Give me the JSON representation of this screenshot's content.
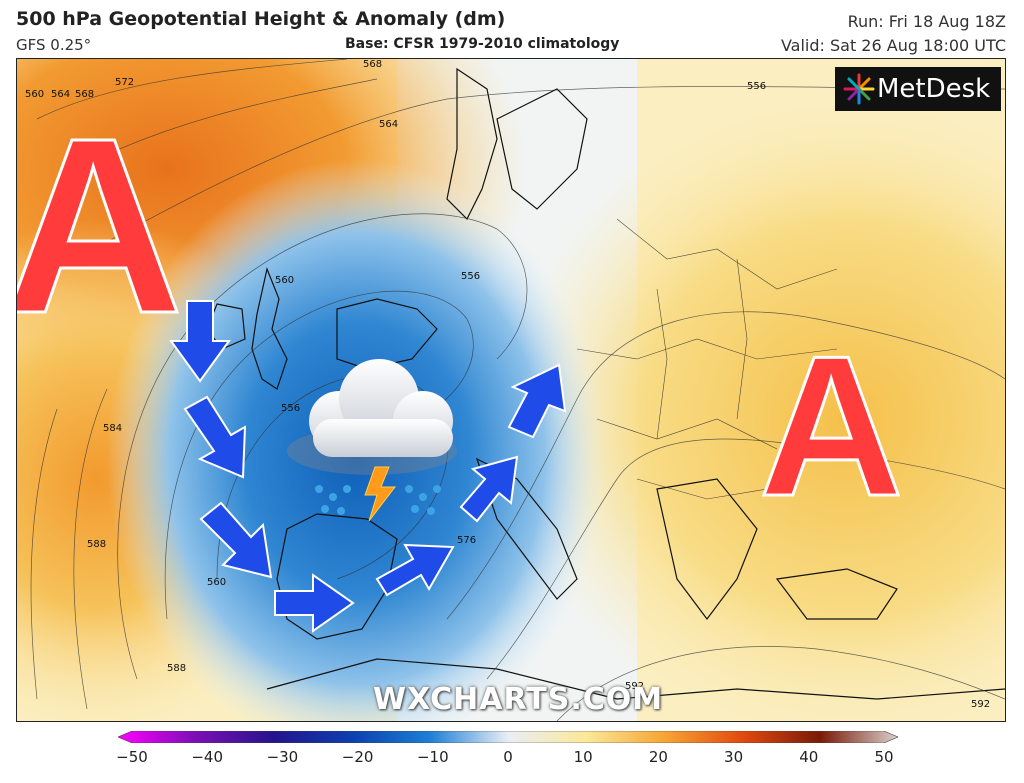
{
  "header": {
    "title": "500 hPa Geopotential Height & Anomaly (dm)",
    "model": "GFS 0.25°",
    "base": "Base: CFSR 1979-2010 climatology",
    "run": "Run: Fri 18 Aug 18Z",
    "valid": "Valid: Sat 26 Aug 18:00 UTC"
  },
  "logo": {
    "text": "MetDesk"
  },
  "watermark": "WXCHARTS.COM",
  "annotations": {
    "high_left": "A",
    "high_right": "A"
  },
  "contour_labels": [
    "560",
    "564",
    "568",
    "572",
    "556",
    "560",
    "564",
    "568",
    "556",
    "556",
    "584",
    "588",
    "560",
    "588",
    "576",
    "592",
    "592"
  ],
  "colorbar": {
    "ticks": [
      "−50",
      "−40",
      "−30",
      "−20",
      "−10",
      "0",
      "10",
      "20",
      "30",
      "40",
      "50"
    ],
    "colors": [
      "#ff00ff",
      "#7a0fb4",
      "#24148c",
      "#0d3fb0",
      "#1e7fd4",
      "#dbe9f5",
      "#fbe89a",
      "#f7a535",
      "#e24a10",
      "#7a1a08",
      "#ffffff"
    ]
  },
  "icons": [
    "storm-cloud-icon",
    "lightning-icon",
    "rain-drops-icon",
    "arrow-icon"
  ]
}
